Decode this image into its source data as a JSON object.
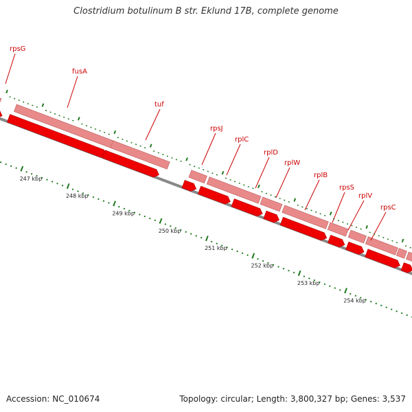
{
  "title": "Clostridium botulinum B str. Eklund 17B, complete genome",
  "accession_text": "Accession: NC_010674",
  "summary_text": "Topology: circular; Length: 3,800,327 bp; Genes: 3,537",
  "colors": {
    "label_red": "#cc0000",
    "gene_red": "#ee0000",
    "gene_pink": "#e98a8a",
    "backbone": "#888888",
    "tick_green": "#1f7a1f"
  },
  "ruler_labels": [
    "247 kbp",
    "248 kbp",
    "249 kbp",
    "250 kbp",
    "251 kbp",
    "252 kbp",
    "253 kbp",
    "254 kbp"
  ],
  "genes": [
    {
      "name": "rpsG"
    },
    {
      "name": "fusA"
    },
    {
      "name": "tuf"
    },
    {
      "name": "rpsJ"
    },
    {
      "name": "rplC"
    },
    {
      "name": "rplD"
    },
    {
      "name": "rplW"
    },
    {
      "name": "rplB"
    },
    {
      "name": "rpsS"
    },
    {
      "name": "rplV"
    },
    {
      "name": "rpsC"
    }
  ]
}
